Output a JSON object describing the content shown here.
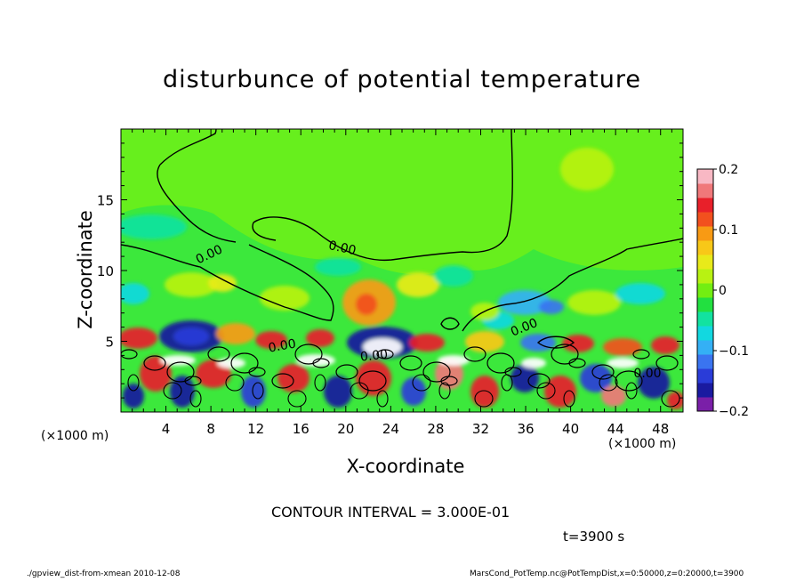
{
  "chart_data": {
    "type": "heatmap",
    "title": "disturbunce of potential temperature",
    "xlabel": "X-coordinate",
    "ylabel": "Z-coordinate",
    "x_unit": "(×1000 m)",
    "y_unit": "(×1000 m)",
    "xlim": [
      0,
      50
    ],
    "ylim": [
      0,
      20
    ],
    "x_ticks": [
      4,
      8,
      12,
      16,
      20,
      24,
      28,
      32,
      36,
      40,
      44,
      48
    ],
    "y_ticks": [
      5,
      10,
      15
    ],
    "colorbar": {
      "range": [
        -0.2,
        0.2
      ],
      "ticks": [
        {
          "value": 0.2,
          "label": "0.2"
        },
        {
          "value": 0.1,
          "label": "0.1"
        },
        {
          "value": 0,
          "label": "0"
        },
        {
          "value": -0.1,
          "label": "−0.1"
        },
        {
          "value": -0.2,
          "label": "−0.2"
        }
      ],
      "colors": [
        "#7a1fa8",
        "#1a1aa0",
        "#2a3cd8",
        "#3a74f0",
        "#34b0f5",
        "#12d8e0",
        "#12e2a0",
        "#22e040",
        "#72ee12",
        "#b8f212",
        "#e8ea1a",
        "#f8c818",
        "#f89a14",
        "#f2501e",
        "#e8202a",
        "#f0787a",
        "#f8b8c4"
      ]
    },
    "contour_labels": [
      "0.00",
      "0.00",
      "0.00",
      "0.00",
      "0.00",
      "0.00"
    ],
    "contour_interval_text": "CONTOUR INTERVAL = 3.000E-01",
    "time_text": "t=3900 s"
  },
  "footer": {
    "left": "./gpview_dist-from-xmean   2010-12-08",
    "right": "MarsCond_PotTemp.nc@PotTempDist,x=0:50000,z=0:20000,t=3900"
  },
  "colors": {
    "background_field": "#3ce83c",
    "upper_field": "#6ef018"
  }
}
